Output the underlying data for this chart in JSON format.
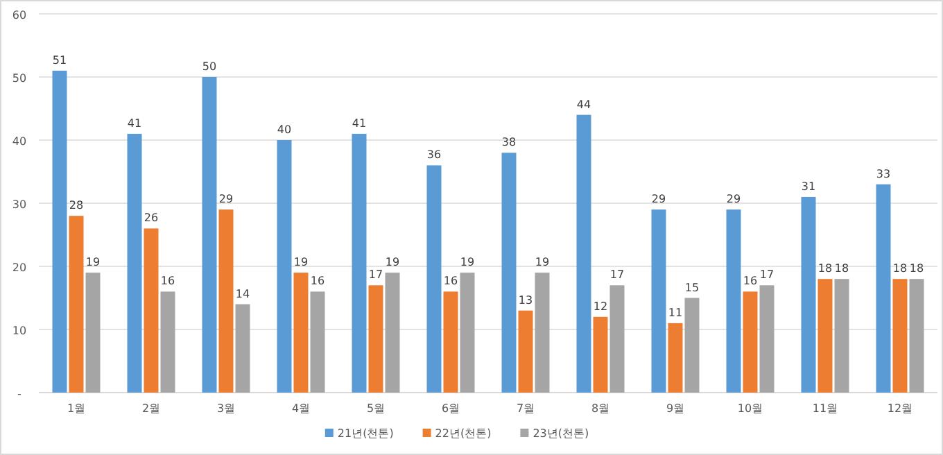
{
  "chart_data": {
    "type": "bar",
    "categories": [
      "1월",
      "2월",
      "3월",
      "4월",
      "5월",
      "6월",
      "7월",
      "8월",
      "9월",
      "10월",
      "11월",
      "12월"
    ],
    "series": [
      {
        "name": "21년(천톤)",
        "color": "#5b9bd5",
        "values": [
          51,
          41,
          50,
          40,
          41,
          36,
          38,
          44,
          29,
          29,
          31,
          33
        ]
      },
      {
        "name": "22년(천톤)",
        "color": "#ed7d31",
        "values": [
          28,
          26,
          29,
          19,
          17,
          16,
          13,
          12,
          11,
          16,
          18,
          18
        ]
      },
      {
        "name": "23년(천톤)",
        "color": "#a5a5a5",
        "values": [
          19,
          16,
          14,
          16,
          19,
          19,
          19,
          17,
          15,
          17,
          18,
          18
        ]
      }
    ],
    "ylim": [
      0,
      60
    ],
    "yticks": [
      {
        "value": 0,
        "label": "-"
      },
      10,
      20,
      30,
      40,
      50,
      60
    ],
    "grid": "y",
    "legend": "bottom",
    "data_labels": true
  }
}
